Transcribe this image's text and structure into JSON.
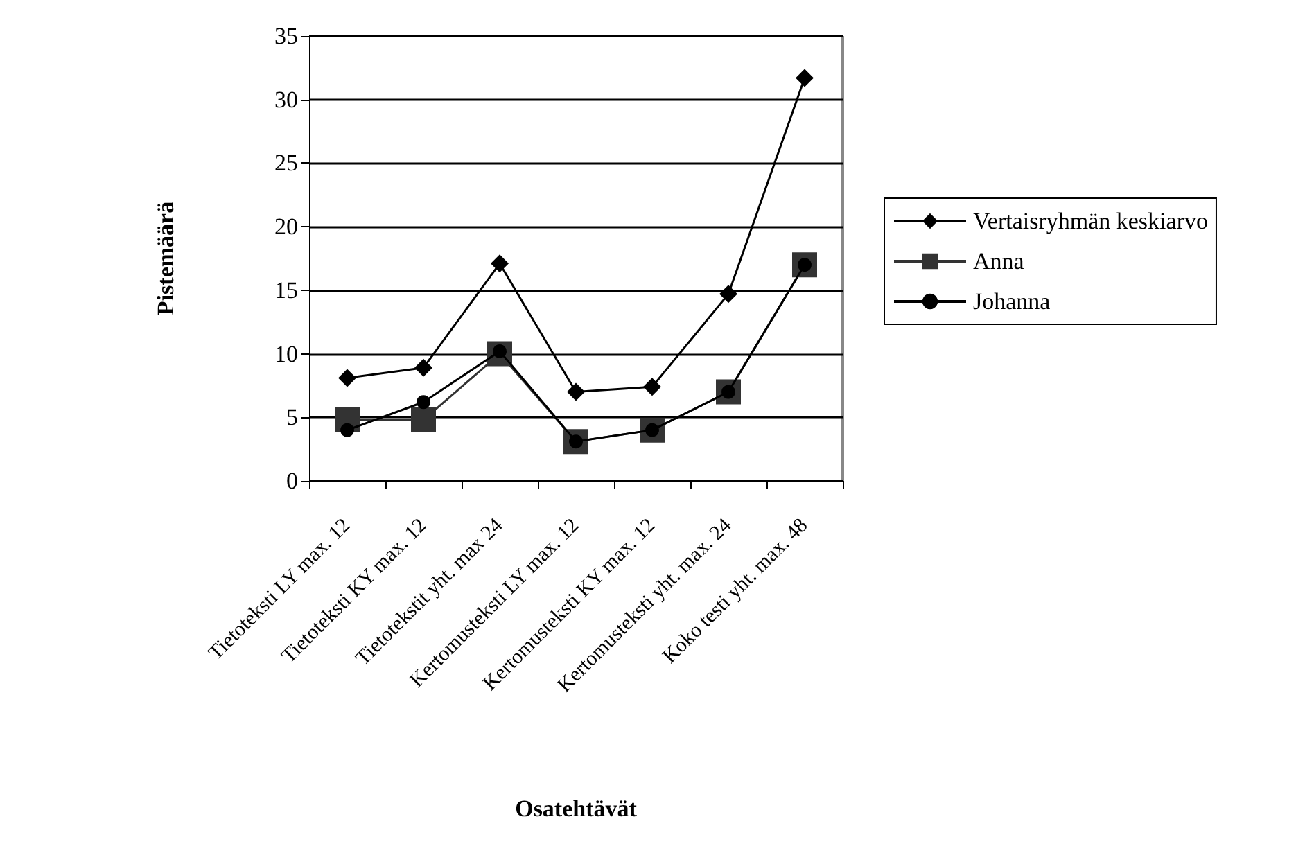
{
  "chart_data": {
    "type": "line",
    "xlabel": "Osatehtävät",
    "ylabel": "Pistemäärä",
    "categories": [
      "Tietoteksti LY max. 12",
      "Tietoteksti KY max. 12",
      "Tietotekstit yht. max 24",
      "Kertomusteksti LY max. 12",
      "Kertomusteksti KY max. 12",
      "Kertomusteksti yht. max. 24",
      "Koko testi yht. max. 48"
    ],
    "series": [
      {
        "name": "Vertaisryhmän keskiarvo",
        "color": "#000000",
        "marker": "diamond",
        "values": [
          8.1,
          8.9,
          17.1,
          7.0,
          7.4,
          14.7,
          31.7
        ]
      },
      {
        "name": "Anna",
        "color": "#333333",
        "marker": "square",
        "values": [
          4.8,
          4.8,
          10.0,
          3.1,
          4.0,
          7.0,
          17.0
        ]
      },
      {
        "name": "Johanna",
        "color": "#000000",
        "marker": "circle",
        "values": [
          4.0,
          6.2,
          10.2,
          3.1,
          4.0,
          7.0,
          17.0
        ]
      }
    ],
    "ylim": [
      0,
      35
    ],
    "yticks": [
      0,
      5,
      10,
      15,
      20,
      25,
      30,
      35
    ],
    "grid": "y",
    "legend": "right"
  }
}
